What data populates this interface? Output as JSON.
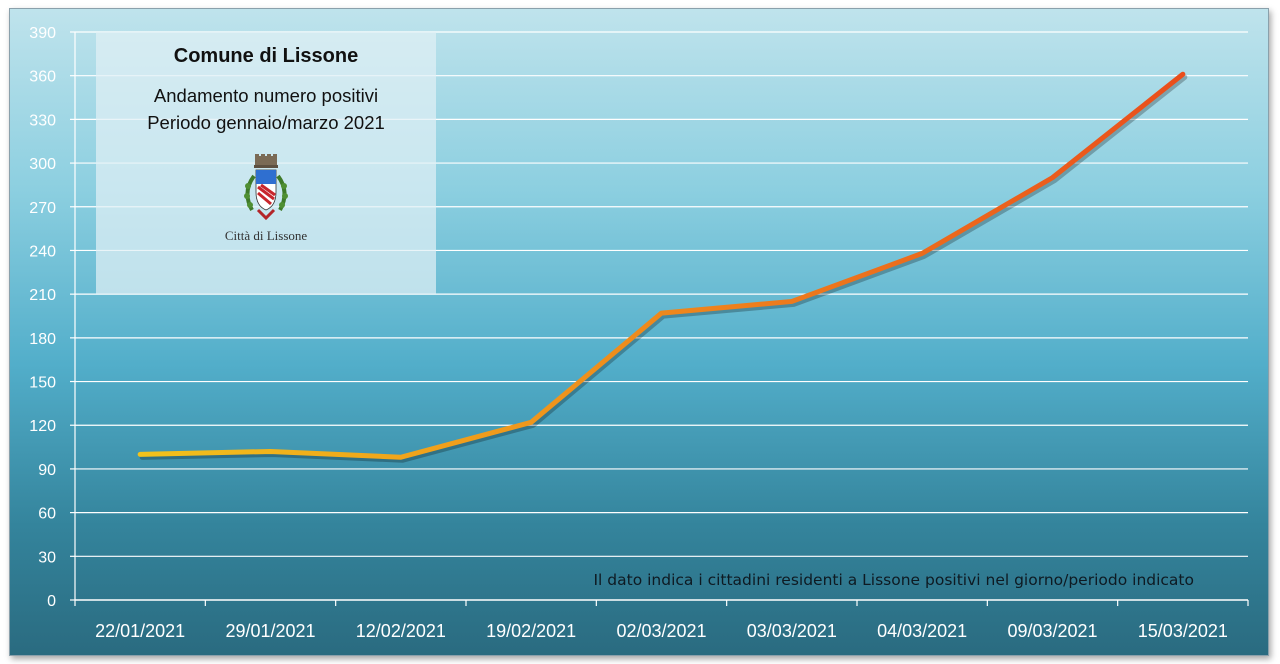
{
  "info_box": {
    "title": "Comune di Lissone",
    "subtitle_line1": "Andamento numero positivi",
    "subtitle_line2": "Periodo gennaio/marzo 2021",
    "logo_caption": "Città di Lissone",
    "logo_icon": "city-crest-icon"
  },
  "chart_data": {
    "type": "line",
    "categories": [
      "22/01/2021",
      "29/01/2021",
      "12/02/2021",
      "19/02/2021",
      "02/03/2021",
      "03/03/2021",
      "04/03/2021",
      "09/03/2021",
      "15/03/2021"
    ],
    "series": [
      {
        "values": [
          100,
          102,
          98,
          122,
          197,
          205,
          238,
          290,
          361
        ]
      }
    ],
    "ylim": [
      0,
      390
    ],
    "yticks": [
      0,
      30,
      60,
      90,
      120,
      150,
      180,
      210,
      240,
      270,
      300,
      330,
      360,
      390
    ],
    "annotation": "Il dato indica i cittadini residenti a Lissone positivi nel giorno/periodo indicato",
    "grid": true,
    "line_color_start": "#f2c21b",
    "line_color_end": "#ea4e1c"
  }
}
